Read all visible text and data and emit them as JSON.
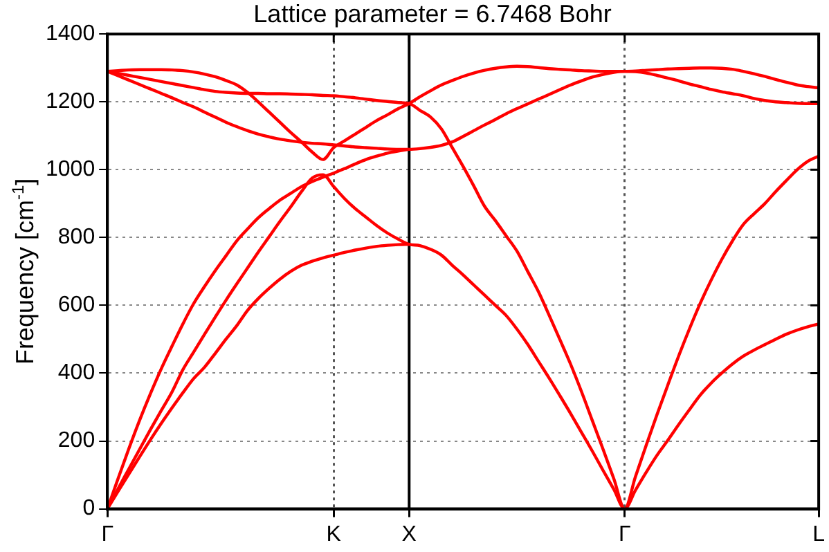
{
  "chart_data": {
    "type": "line",
    "title": "Lattice parameter = 6.7468 Bohr",
    "ylabel": "Frequency [cm$^{-1}$]",
    "categories": [
      "Γ",
      null,
      null,
      null,
      null,
      null,
      null,
      null,
      null,
      null,
      null,
      null,
      null,
      null,
      null,
      null,
      null,
      null,
      null,
      null,
      null,
      "K",
      null,
      null,
      null,
      null,
      null,
      null,
      "X",
      null,
      null,
      null,
      null,
      null,
      null,
      null,
      null,
      null,
      null,
      null,
      null,
      null,
      null,
      null,
      null,
      null,
      null,
      null,
      "Γ",
      null,
      null,
      null,
      null,
      null,
      null,
      null,
      null,
      null,
      null,
      null,
      null,
      null,
      null,
      null,
      null,
      null,
      "L"
    ],
    "ylim": [
      0,
      1400
    ],
    "yticks": [
      0,
      200,
      400,
      600,
      800,
      1000,
      1200,
      1400
    ],
    "grid": true,
    "legend": false,
    "line_style": "solid",
    "ref_lines": [
      {
        "axis": "x",
        "value": "X",
        "color": "#000000",
        "line_style": "solid"
      }
    ],
    "series": [
      {
        "color": "#ff0000",
        "values": [
          1290,
          1292,
          1294,
          1295,
          1295,
          1295,
          1294,
          1292,
          1288,
          1282,
          1274,
          1263,
          1250,
          1228,
          1200,
          1170,
          1140,
          1110,
          1082,
          1052,
          1030,
          1065,
          1085,
          1105,
          1125,
          1145,
          1162,
          1180,
          1195,
          1215,
          1233,
          1250,
          1263,
          1275,
          1285,
          1293,
          1299,
          1303,
          1305,
          1304,
          1301,
          1298,
          1296,
          1294,
          1292,
          1291,
          1290,
          1290,
          1290,
          1291,
          1293,
          1295,
          1297,
          1298,
          1299,
          1300,
          1300,
          1299,
          1296,
          1290,
          1283,
          1275,
          1266,
          1258,
          1250,
          1245,
          1241
        ]
      },
      {
        "color": "#ff0000",
        "values": [
          1290,
          1284,
          1278,
          1272,
          1266,
          1260,
          1254,
          1248,
          1242,
          1236,
          1231,
          1228,
          1226,
          1225,
          1225,
          1224,
          1224,
          1223,
          1222,
          1221,
          1219,
          1218,
          1215,
          1212,
          1208,
          1204,
          1201,
          1198,
          1195,
          1175,
          1155,
          1120,
          1065,
          1010,
          952,
          892,
          850,
          805,
          760,
          700,
          640,
          570,
          498,
          425,
          345,
          260,
          175,
          88,
          0,
          95,
          188,
          278,
          365,
          450,
          530,
          605,
          673,
          735,
          790,
          838,
          870,
          900,
          935,
          968,
          1000,
          1025,
          1040
        ]
      },
      {
        "color": "#ff0000",
        "values": [
          1290,
          1277,
          1264,
          1251,
          1238,
          1225,
          1212,
          1198,
          1185,
          1170,
          1155,
          1140,
          1127,
          1115,
          1105,
          1097,
          1090,
          1085,
          1081,
          1078,
          1076,
          1073,
          1070,
          1067,
          1065,
          1063,
          1061,
          1060,
          1060,
          1062,
          1066,
          1072,
          1082,
          1098,
          1115,
          1132,
          1148,
          1165,
          1180,
          1194,
          1208,
          1222,
          1236,
          1250,
          1262,
          1273,
          1281,
          1287,
          1290,
          1289,
          1285,
          1278,
          1270,
          1262,
          1253,
          1245,
          1237,
          1230,
          1224,
          1218,
          1210,
          1204,
          1200,
          1198,
          1196,
          1195,
          1195
        ]
      },
      {
        "color": "#ff0000",
        "values": [
          0,
          60,
          118,
          176,
          234,
          290,
          345,
          410,
          462,
          514,
          565,
          615,
          663,
          710,
          757,
          802,
          847,
          890,
          935,
          975,
          985,
          950,
          915,
          885,
          860,
          835,
          813,
          795,
          780,
          776,
          765,
          748,
          718,
          690,
          660,
          630,
          600,
          570,
          530,
          485,
          435,
          385,
          333,
          280,
          225,
          170,
          113,
          57,
          0,
          55,
          108,
          158,
          202,
          248,
          292,
          335,
          370,
          400,
          427,
          450,
          468,
          484,
          500,
          515,
          527,
          537,
          545
        ]
      },
      {
        "color": "#ff0000",
        "values": [
          0,
          90,
          178,
          262,
          340,
          413,
          480,
          545,
          605,
          655,
          702,
          746,
          790,
          825,
          858,
          885,
          910,
          930,
          950,
          965,
          978,
          990,
          1003,
          1017,
          1030,
          1040,
          1049,
          1055,
          1060,
          null,
          null,
          null,
          null,
          null,
          null,
          null,
          null,
          null,
          null,
          null,
          null,
          null,
          null,
          null,
          null,
          null,
          null,
          null,
          null,
          null,
          null,
          null,
          null,
          null,
          null,
          null,
          null,
          null,
          null,
          null,
          null,
          null,
          null,
          null,
          null,
          null,
          null
        ]
      },
      {
        "color": "#ff0000",
        "values": [
          0,
          52,
          103,
          154,
          204,
          252,
          298,
          342,
          384,
          417,
          458,
          500,
          540,
          585,
          620,
          650,
          677,
          700,
          718,
          730,
          740,
          748,
          756,
          763,
          769,
          774,
          777,
          779,
          780,
          null,
          null,
          null,
          null,
          null,
          null,
          null,
          null,
          null,
          null,
          null,
          null,
          null,
          null,
          null,
          null,
          null,
          null,
          null,
          null,
          null,
          null,
          null,
          null,
          null,
          null,
          null,
          null,
          null,
          null,
          null,
          null,
          null,
          null,
          null,
          null,
          null,
          null
        ]
      }
    ]
  }
}
